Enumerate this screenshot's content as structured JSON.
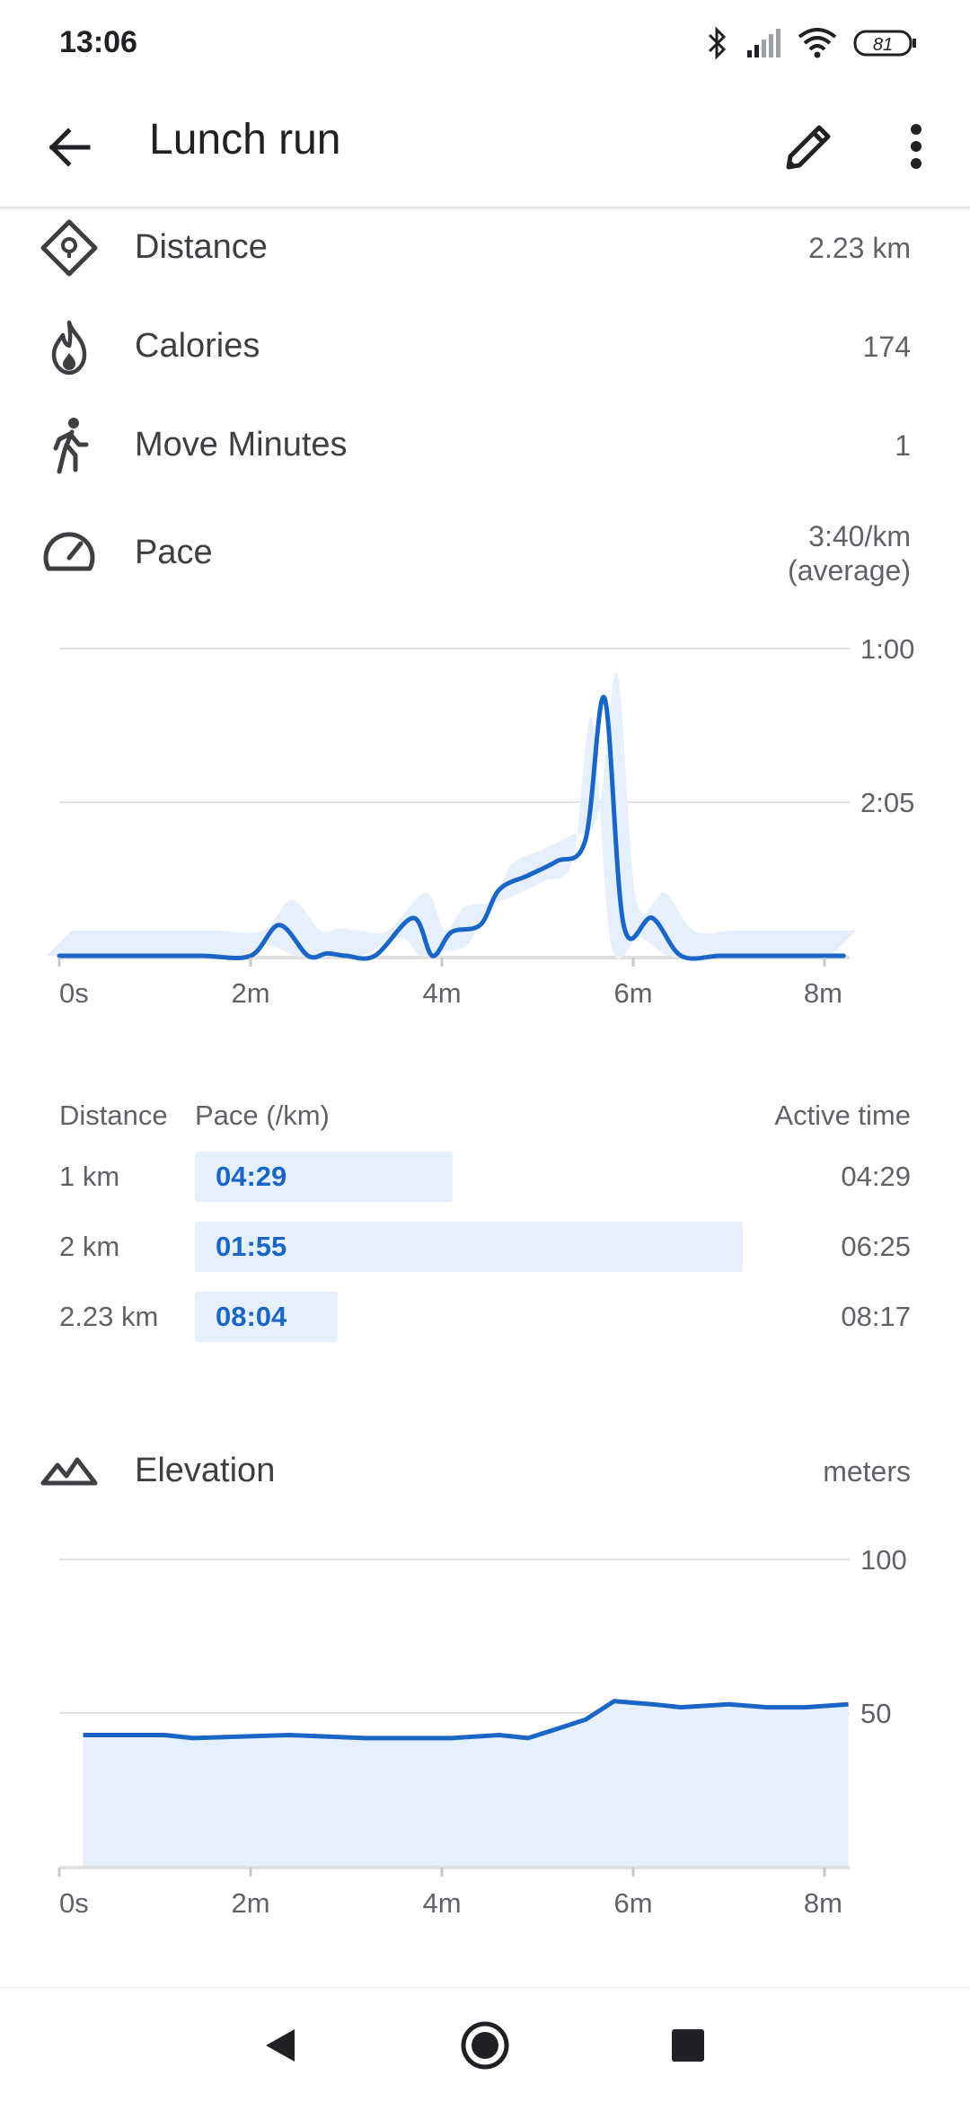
{
  "status_bar": {
    "time": "13:06",
    "battery": "81"
  },
  "app_bar": {
    "title": "Lunch run"
  },
  "stats": [
    {
      "label": "Distance",
      "value": "2.23 km",
      "icon": "route-pin-icon"
    },
    {
      "label": "Calories",
      "value": "174",
      "icon": "flame-icon"
    },
    {
      "label": "Move Minutes",
      "value": "1",
      "icon": "walking-person-icon"
    },
    {
      "label": "Pace",
      "value": "3:40/km",
      "value2": "(average)",
      "icon": "speedometer-icon"
    }
  ],
  "pace_chart": {
    "type": "area",
    "x_ticks": [
      "0s",
      "2m",
      "4m",
      "6m",
      "8m"
    ],
    "y_ticks": [
      "1:00",
      "2:05"
    ],
    "x_minutes": [
      0.0,
      0.3,
      0.6,
      1.0,
      1.5,
      2.0,
      2.3,
      2.6,
      2.8,
      3.0,
      3.3,
      3.7,
      3.9,
      4.1,
      4.4,
      4.6,
      4.9,
      5.2,
      5.5,
      5.7,
      5.9,
      6.2,
      6.5,
      6.9,
      7.2,
      7.6,
      8.0,
      8.2
    ],
    "pace_min_per_km": [
      4.2,
      4.1,
      4.1,
      4.08,
      4.05,
      3.95,
      2.95,
      3.3,
      3.15,
      3.8,
      3.75,
      2.9,
      3.2,
      3.0,
      2.95,
      2.7,
      2.6,
      2.5,
      2.35,
      1.35,
      2.95,
      2.9,
      3.35,
      3.9,
      4.05,
      4.05,
      4.08,
      4.1
    ],
    "series": []
  },
  "splits": {
    "headers": {
      "distance": "Distance",
      "pace": "Pace (/km)",
      "time": "Active time"
    },
    "rows": [
      {
        "distance": "1 km",
        "pace": "04:29",
        "time": "04:29",
        "bar_fraction": 0.47
      },
      {
        "distance": "2 km",
        "pace": "01:55",
        "time": "06:25",
        "bar_fraction": 1.0
      },
      {
        "distance": "2.23 km",
        "pace": "08:04",
        "time": "08:17",
        "bar_fraction": 0.26
      }
    ]
  },
  "elevation": {
    "label": "Elevation",
    "unit": "meters",
    "icon": "mountain-icon"
  },
  "elevation_chart": {
    "type": "area",
    "x_ticks": [
      "0s",
      "2m",
      "4m",
      "6m",
      "8m"
    ],
    "y_ticks": [
      "100",
      "50"
    ],
    "ylim": [
      0,
      100
    ],
    "x_minutes": [
      0.25,
      1.1,
      1.4,
      2.4,
      3.2,
      4.1,
      4.6,
      4.9,
      5.2,
      5.5,
      5.8,
      6.2,
      6.5,
      7.0,
      7.4,
      7.8,
      8.25
    ],
    "elevation_m": [
      43,
      43,
      42,
      43,
      42,
      42,
      43,
      42,
      45,
      48,
      54,
      53,
      52,
      53,
      52,
      52,
      53
    ],
    "series": []
  },
  "nav": {
    "back": "back-triangle-icon",
    "home": "home-circle-icon",
    "recents": "recents-square-icon"
  }
}
